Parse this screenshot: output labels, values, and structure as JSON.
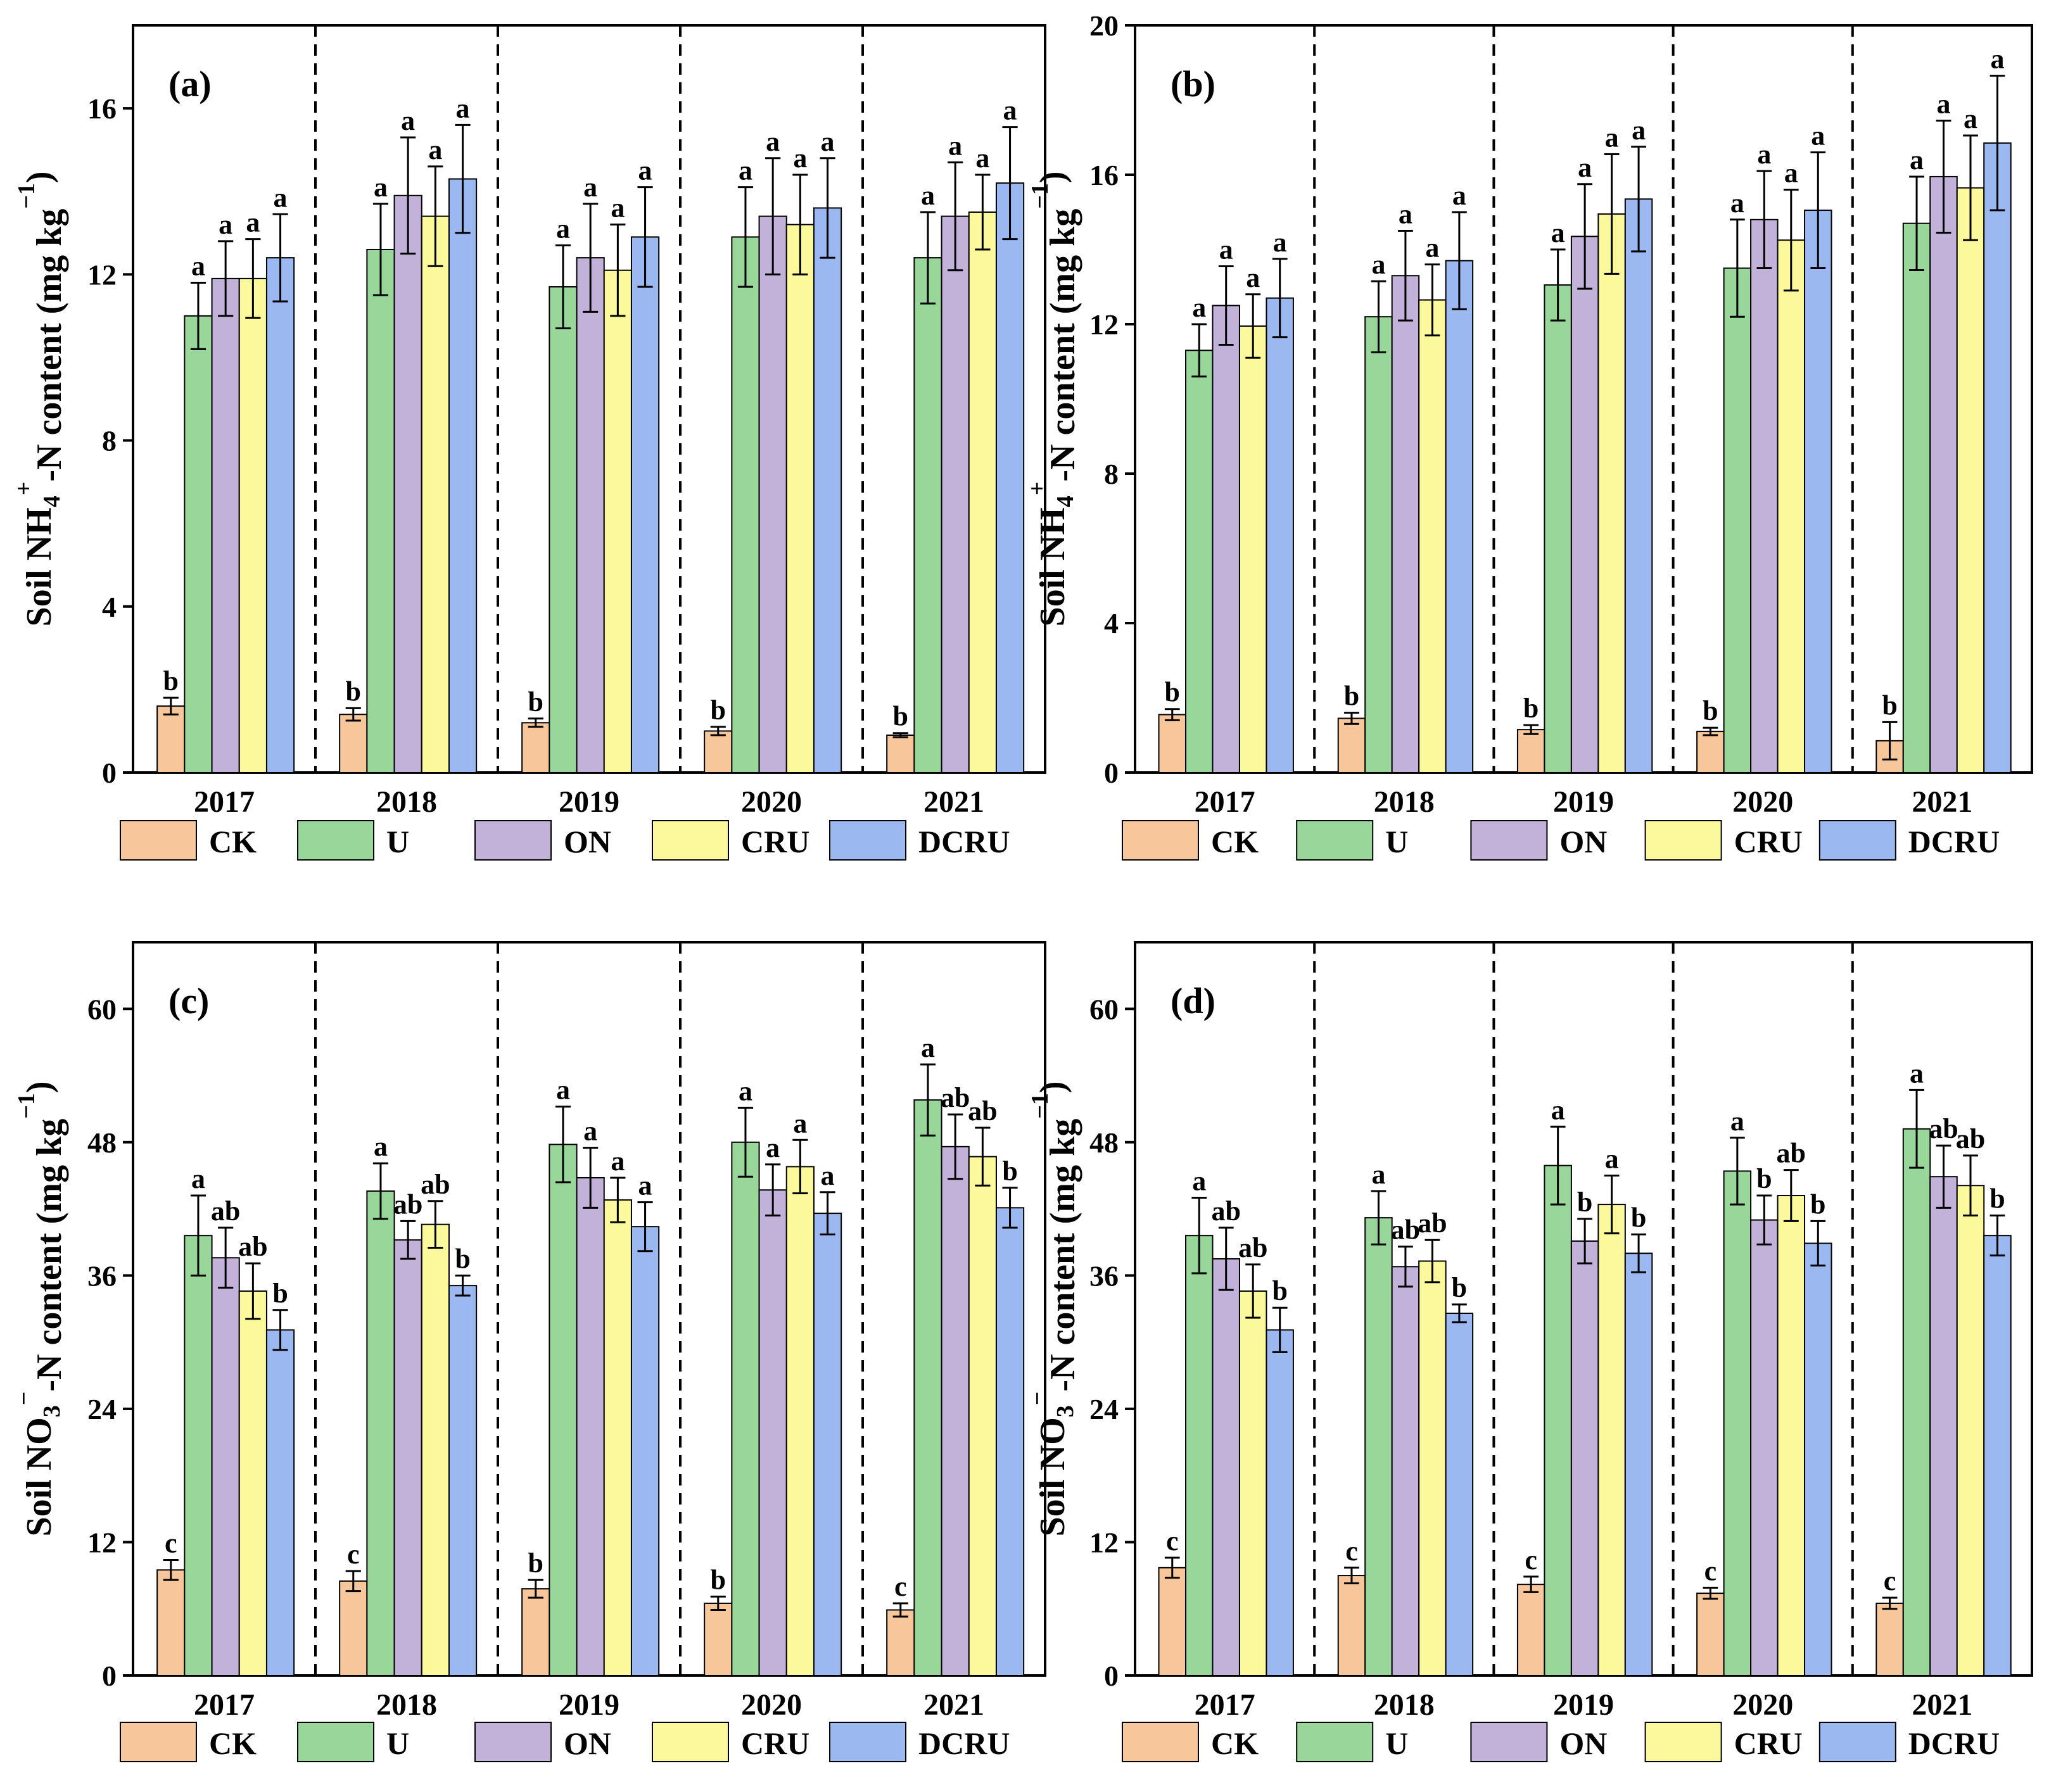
{
  "colors": {
    "CK": "#f7c79b",
    "U": "#99d69a",
    "ON": "#c2b1d8",
    "CRU": "#fbf99c",
    "DCRU": "#9cb8f0"
  },
  "legend": [
    "CK",
    "U",
    "ON",
    "CRU",
    "DCRU"
  ],
  "chart_data": [
    {
      "type": "bar",
      "panel_label": "(a)",
      "ylabel_parts": [
        "Soil NH",
        "4",
        "+",
        "-N content (mg kg",
        "−1",
        ")"
      ],
      "ylim": [
        0,
        18
      ],
      "yticks": [
        0,
        4,
        8,
        12,
        16
      ],
      "categories": [
        "2017",
        "2018",
        "2019",
        "2020",
        "2021"
      ],
      "series": [
        {
          "name": "CK",
          "values": [
            1.6,
            1.4,
            1.2,
            1.0,
            0.9
          ],
          "errors": [
            0.2,
            0.15,
            0.1,
            0.1,
            0.05
          ],
          "letters": [
            "b",
            "b",
            "b",
            "b",
            "b"
          ]
        },
        {
          "name": "U",
          "values": [
            11.0,
            12.6,
            11.7,
            12.9,
            12.4
          ],
          "errors": [
            0.8,
            1.1,
            1.0,
            1.2,
            1.1
          ],
          "letters": [
            "a",
            "a",
            "a",
            "a",
            "a"
          ]
        },
        {
          "name": "ON",
          "values": [
            11.9,
            13.9,
            12.4,
            13.4,
            13.4
          ],
          "errors": [
            0.9,
            1.4,
            1.3,
            1.4,
            1.3
          ],
          "letters": [
            "a",
            "a",
            "a",
            "a",
            "a"
          ]
        },
        {
          "name": "CRU",
          "values": [
            11.9,
            13.4,
            12.1,
            13.2,
            13.5
          ],
          "errors": [
            0.95,
            1.2,
            1.1,
            1.2,
            0.9
          ],
          "letters": [
            "a",
            "a",
            "a",
            "a",
            "a"
          ]
        },
        {
          "name": "DCRU",
          "values": [
            12.4,
            14.3,
            12.9,
            13.6,
            14.2
          ],
          "errors": [
            1.05,
            1.3,
            1.2,
            1.2,
            1.35
          ],
          "letters": [
            "a",
            "a",
            "a",
            "a",
            "a"
          ]
        }
      ]
    },
    {
      "type": "bar",
      "panel_label": "(b)",
      "ylabel_parts": [
        "Soil NH",
        "4",
        "+",
        "-N content (mg kg",
        "−1",
        ")"
      ],
      "ylim": [
        0,
        20
      ],
      "yticks": [
        0,
        4,
        8,
        12,
        16,
        20
      ],
      "categories": [
        "2017",
        "2018",
        "2019",
        "2020",
        "2021"
      ],
      "series": [
        {
          "name": "CK",
          "values": [
            1.55,
            1.45,
            1.15,
            1.1,
            0.85
          ],
          "errors": [
            0.15,
            0.15,
            0.12,
            0.1,
            0.5
          ],
          "letters": [
            "b",
            "b",
            "b",
            "b",
            "b"
          ]
        },
        {
          "name": "U",
          "values": [
            11.3,
            12.2,
            13.05,
            13.5,
            14.7
          ],
          "errors": [
            0.7,
            0.95,
            0.95,
            1.3,
            1.25
          ],
          "letters": [
            "a",
            "a",
            "a",
            "a",
            "a"
          ]
        },
        {
          "name": "ON",
          "values": [
            12.5,
            13.3,
            14.35,
            14.8,
            15.95
          ],
          "errors": [
            1.05,
            1.2,
            1.4,
            1.3,
            1.5
          ],
          "letters": [
            "a",
            "a",
            "a",
            "a",
            "a"
          ]
        },
        {
          "name": "CRU",
          "values": [
            11.95,
            12.65,
            14.95,
            14.25,
            15.65
          ],
          "errors": [
            0.85,
            0.95,
            1.6,
            1.35,
            1.4
          ],
          "letters": [
            "a",
            "a",
            "a",
            "a",
            "a"
          ]
        },
        {
          "name": "DCRU",
          "values": [
            12.7,
            13.7,
            15.35,
            15.05,
            16.85
          ],
          "errors": [
            1.05,
            1.3,
            1.4,
            1.55,
            1.8
          ],
          "letters": [
            "a",
            "a",
            "a",
            "a",
            "a"
          ]
        }
      ]
    },
    {
      "type": "bar",
      "panel_label": "(c)",
      "ylabel_parts": [
        "Soil NO",
        "3",
        "−",
        "-N content (mg kg",
        "−1",
        ")"
      ],
      "ylim": [
        0,
        66
      ],
      "yticks": [
        0,
        12,
        24,
        36,
        48,
        60
      ],
      "categories": [
        "2017",
        "2018",
        "2019",
        "2020",
        "2021"
      ],
      "series": [
        {
          "name": "CK",
          "values": [
            9.5,
            8.5,
            7.8,
            6.5,
            5.9
          ],
          "errors": [
            0.9,
            0.9,
            0.8,
            0.6,
            0.6
          ],
          "letters": [
            "c",
            "c",
            "b",
            "b",
            "c"
          ]
        },
        {
          "name": "U",
          "values": [
            39.6,
            43.6,
            47.8,
            48.0,
            51.8
          ],
          "errors": [
            3.6,
            2.5,
            3.4,
            3.1,
            3.2
          ],
          "letters": [
            "a",
            "a",
            "a",
            "a",
            "a"
          ]
        },
        {
          "name": "ON",
          "values": [
            37.6,
            39.2,
            44.8,
            43.7,
            47.6
          ],
          "errors": [
            2.7,
            1.7,
            2.7,
            2.3,
            2.9
          ],
          "letters": [
            "ab",
            "ab",
            "a",
            "a",
            "ab"
          ]
        },
        {
          "name": "CRU",
          "values": [
            34.6,
            40.6,
            42.8,
            45.8,
            46.7
          ],
          "errors": [
            2.5,
            2.1,
            2.0,
            2.4,
            2.6
          ],
          "letters": [
            "ab",
            "ab",
            "a",
            "a",
            "ab"
          ]
        },
        {
          "name": "DCRU",
          "values": [
            31.1,
            35.1,
            40.4,
            41.6,
            42.1
          ],
          "errors": [
            1.8,
            0.9,
            2.2,
            1.9,
            1.8
          ],
          "letters": [
            "b",
            "b",
            "a",
            "a",
            "b"
          ]
        }
      ]
    },
    {
      "type": "bar",
      "panel_label": "(d)",
      "ylabel_parts": [
        "Soil NO",
        "3",
        "−",
        "-N content (mg kg",
        "−1",
        ")"
      ],
      "ylim": [
        0,
        66
      ],
      "yticks": [
        0,
        12,
        24,
        36,
        48,
        60
      ],
      "categories": [
        "2017",
        "2018",
        "2019",
        "2020",
        "2021"
      ],
      "series": [
        {
          "name": "CK",
          "values": [
            9.7,
            9.0,
            8.2,
            7.4,
            6.5
          ],
          "errors": [
            0.9,
            0.7,
            0.7,
            0.5,
            0.5
          ],
          "letters": [
            "c",
            "c",
            "c",
            "c",
            "c"
          ]
        },
        {
          "name": "U",
          "values": [
            39.6,
            41.2,
            45.9,
            45.4,
            49.2
          ],
          "errors": [
            3.4,
            2.4,
            3.5,
            3.0,
            3.5
          ],
          "letters": [
            "a",
            "a",
            "a",
            "a",
            "a"
          ]
        },
        {
          "name": "ON",
          "values": [
            37.5,
            36.8,
            39.1,
            41.0,
            44.9
          ],
          "errors": [
            2.8,
            1.8,
            2.0,
            2.2,
            2.8
          ],
          "letters": [
            "ab",
            "ab",
            "b",
            "b",
            "ab"
          ]
        },
        {
          "name": "CRU",
          "values": [
            34.6,
            37.3,
            42.4,
            43.2,
            44.1
          ],
          "errors": [
            2.4,
            1.9,
            2.6,
            2.3,
            2.7
          ],
          "letters": [
            "ab",
            "ab",
            "a",
            "ab",
            "ab"
          ]
        },
        {
          "name": "DCRU",
          "values": [
            31.1,
            32.6,
            38.0,
            38.9,
            39.6
          ],
          "errors": [
            2.0,
            0.8,
            1.7,
            2.0,
            1.8
          ],
          "letters": [
            "b",
            "b",
            "b",
            "b",
            "b"
          ]
        }
      ]
    }
  ]
}
